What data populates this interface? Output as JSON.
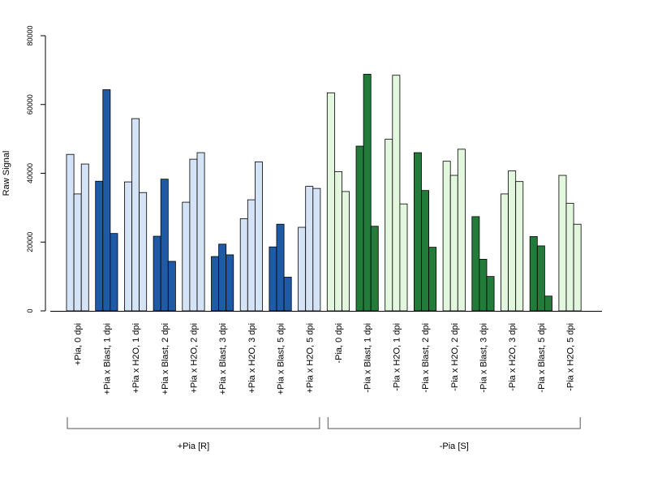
{
  "chart_data": {
    "type": "bar",
    "ylabel": "Raw Signal",
    "ylim": [
      0,
      80000
    ],
    "yticks": [
      0,
      20000,
      40000,
      60000,
      80000
    ],
    "grid": false,
    "categories": [
      "+Pia, 0 dpi",
      "+Pia x Blast, 1 dpi",
      "+Pia x H2O, 1 dpi",
      "+Pia x Blast, 2 dpi",
      "+Pia x H2O, 2 dpi",
      "+Pia x Blast, 3 dpi",
      "+Pia x H2O, 3 dpi",
      "+Pia x Blast, 5 dpi",
      "+Pia x H2O, 5 dpi",
      "-Pia, 0 dpi",
      "-Pia x Blast, 1 dpi",
      "-Pia x H2O, 1 dpi",
      "-Pia x Blast, 2 dpi",
      "-Pia x H2O, 2 dpi",
      "-Pia x Blast, 3 dpi",
      "-Pia x H2O, 3 dpi",
      "-Pia x Blast, 5 dpi",
      "-Pia x H2O, 5 dpi"
    ],
    "values": [
      [
        45500,
        34000,
        42700
      ],
      [
        37700,
        64300,
        22500
      ],
      [
        37500,
        55900,
        34400
      ],
      [
        21700,
        38300,
        14400
      ],
      [
        31600,
        44100,
        46000
      ],
      [
        15800,
        19400,
        16300
      ],
      [
        26800,
        32300,
        43300
      ],
      [
        18600,
        25200,
        9800
      ],
      [
        24300,
        36200,
        35600
      ],
      [
        63400,
        40500,
        34700
      ],
      [
        47900,
        68800,
        24600
      ],
      [
        49900,
        68500,
        31100
      ],
      [
        46000,
        35000,
        18500
      ],
      [
        43500,
        39400,
        47000
      ],
      [
        27400,
        15000,
        10000
      ],
      [
        34000,
        40700,
        37600
      ],
      [
        21600,
        18900,
        4300
      ],
      [
        39400,
        31300,
        25200
      ]
    ],
    "bar_colors": [
      "#d5e3f6",
      "#1f5aa6",
      "#d5e3f6",
      "#1f5aa6",
      "#d5e3f6",
      "#1f5aa6",
      "#d5e3f6",
      "#1f5aa6",
      "#d5e3f6",
      "#e3f6de",
      "#237b3a",
      "#e3f6de",
      "#237b3a",
      "#e3f6de",
      "#237b3a",
      "#e3f6de",
      "#237b3a",
      "#e3f6de"
    ],
    "groups": [
      {
        "label": "+Pia [R]",
        "from": 0,
        "to": 8
      },
      {
        "label": "-Pia [S]",
        "from": 9,
        "to": 17
      }
    ]
  }
}
